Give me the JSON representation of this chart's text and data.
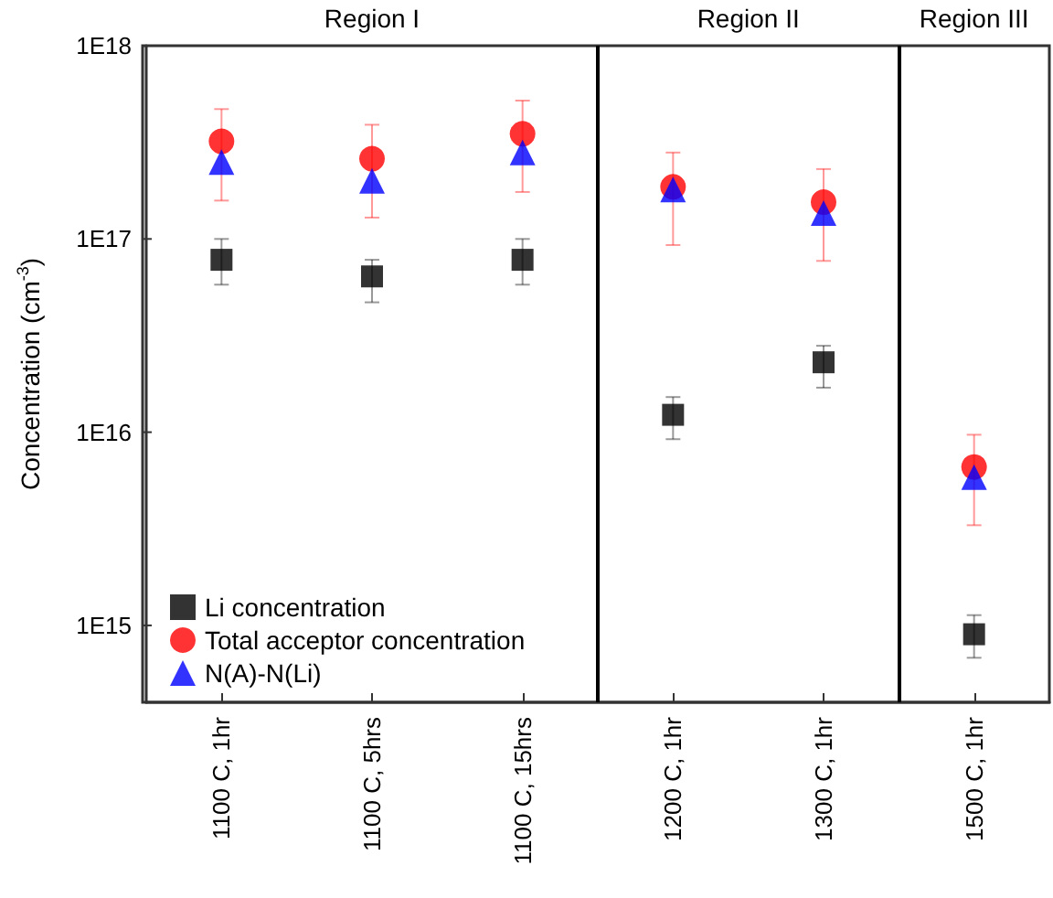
{
  "chart_data": {
    "type": "scatter",
    "ylabel": "Concentration (cm$^{-3}$)",
    "categories": [
      "1100 C, 1hr",
      "1100 C, 5hrs",
      "1100 C, 15hrs",
      "1200 C, 1hr",
      "1300 C, 1hr",
      "1500 C, 1hr"
    ],
    "series": [
      {
        "name": "Li concentration",
        "color": "#000000",
        "marker": "square",
        "values": [
          7.8e+16,
          6.4e+16,
          7.8e+16,
          1.23e+16,
          2.3e+16,
          900000000000000.0
        ],
        "errors": [
          [
            5.8e+16,
            1e+17
          ],
          [
            4.7e+16,
            7.8e+16
          ],
          [
            5.8e+16,
            1e+17
          ],
          [
            9200000000000000.0,
            1.52e+16
          ],
          [
            1.7e+16,
            2.8e+16
          ],
          [
            680000000000000.0,
            1130000000000000.0
          ]
        ]
      },
      {
        "name": "Total acceptor concentration",
        "color": "#ff0000",
        "marker": "circle",
        "values": [
          3.2e+17,
          2.6e+17,
          3.5e+17,
          1.86e+17,
          1.55e+17,
          6600000000000000.0
        ],
        "errors": [
          [
            1.58e+17,
            4.7e+17
          ],
          [
            1.29e+17,
            3.9e+17
          ],
          [
            1.75e+17,
            5.2e+17
          ],
          [
            9.3e+16,
            2.8e+17
          ],
          [
            7.7e+16,
            2.3e+17
          ],
          [
            3300000000000000.0,
            9700000000000000.0
          ]
        ]
      },
      {
        "name": "N(A)-N(Li)",
        "color": "#0000ff",
        "marker": "triangle",
        "values": [
          2.5e+17,
          2e+17,
          2.8e+17,
          1.8e+17,
          1.36e+17,
          5850000000000000.0
        ]
      }
    ],
    "log": "y",
    "ylim": [
      400000000000000.0,
      1e+18
    ],
    "yticks": [
      {
        "value": 1000000000000000.0,
        "label": "1E15"
      },
      {
        "value": 1e+16,
        "label": "1E16"
      },
      {
        "value": 1e+17,
        "label": "1E17"
      },
      {
        "value": 1e+18,
        "label": "1E18"
      }
    ],
    "annotations": [
      "Region I",
      "Region II",
      "Region III"
    ],
    "grid": false,
    "legend": "bottom left"
  }
}
